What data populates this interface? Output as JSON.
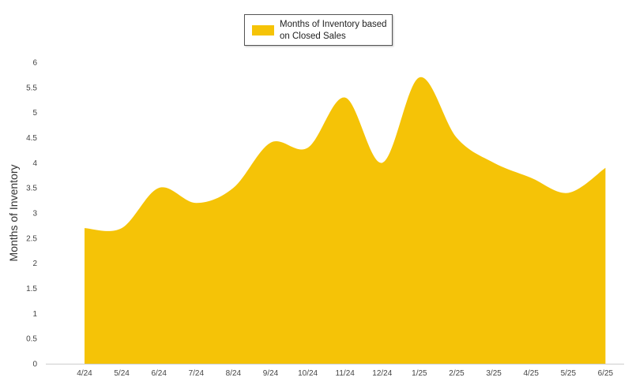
{
  "chart_data": {
    "type": "area",
    "categories": [
      "4/24",
      "5/24",
      "6/24",
      "7/24",
      "8/24",
      "9/24",
      "10/24",
      "11/24",
      "12/24",
      "1/25",
      "2/25",
      "3/25",
      "4/25",
      "5/25",
      "6/25"
    ],
    "series": [
      {
        "name": "Months of Inventory based on Closed Sales",
        "values": [
          2.7,
          2.7,
          3.5,
          3.2,
          3.5,
          4.4,
          4.3,
          5.3,
          4.0,
          5.7,
          4.5,
          4.0,
          3.7,
          3.4,
          3.9
        ],
        "color": "#F5C307"
      }
    ],
    "ylabel": "Months of Inventory",
    "xlabel": "",
    "ylim": [
      0,
      6
    ],
    "yticks": [
      "0",
      "0.5",
      "1",
      "1.5",
      "2",
      "2.5",
      "3",
      "3.5",
      "4",
      "4.5",
      "5",
      "5.5",
      "6"
    ],
    "grid": false,
    "legend_position": "top-center"
  }
}
